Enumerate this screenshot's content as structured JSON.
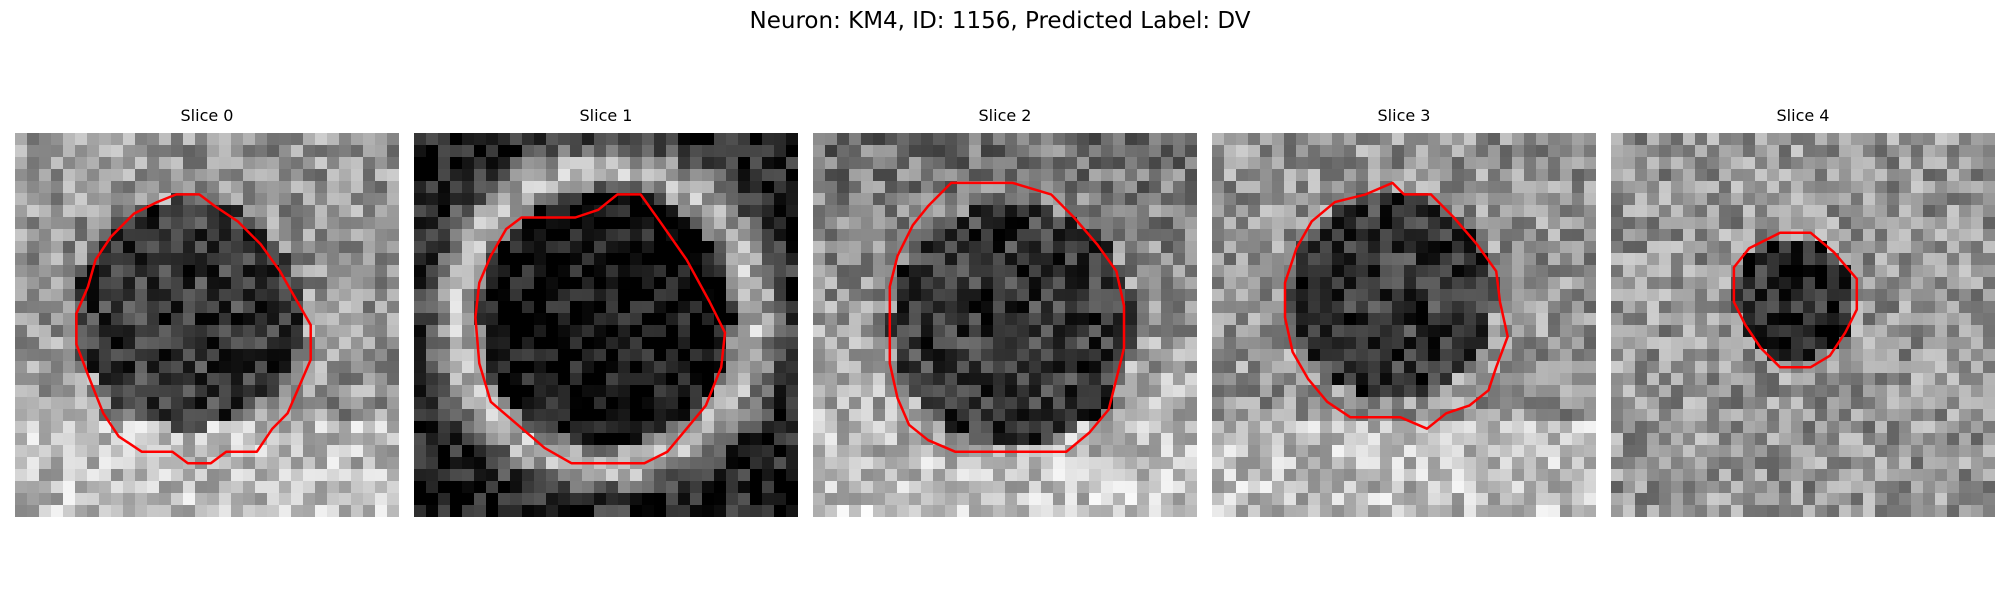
{
  "figure": {
    "title": "Neuron: KM4, ID: 1156, Predicted Label: DV",
    "contour_color": "#ff0000",
    "colormap": "gray"
  },
  "panels": [
    {
      "title": "Slice 0",
      "background": "mottled gray noise with dark circular region",
      "dark_center": [
        0.45,
        0.47
      ],
      "dark_radius": 0.3,
      "contour": [
        [
          0.42,
          0.16
        ],
        [
          0.48,
          0.16
        ],
        [
          0.52,
          0.19
        ],
        [
          0.58,
          0.23
        ],
        [
          0.64,
          0.29
        ],
        [
          0.69,
          0.36
        ],
        [
          0.73,
          0.43
        ],
        [
          0.77,
          0.5
        ],
        [
          0.77,
          0.59
        ],
        [
          0.74,
          0.66
        ],
        [
          0.71,
          0.73
        ],
        [
          0.67,
          0.77
        ],
        [
          0.63,
          0.83
        ],
        [
          0.55,
          0.83
        ],
        [
          0.51,
          0.86
        ],
        [
          0.45,
          0.86
        ],
        [
          0.41,
          0.83
        ],
        [
          0.33,
          0.83
        ],
        [
          0.27,
          0.79
        ],
        [
          0.23,
          0.73
        ],
        [
          0.19,
          0.63
        ],
        [
          0.16,
          0.55
        ],
        [
          0.16,
          0.47
        ],
        [
          0.19,
          0.4
        ],
        [
          0.21,
          0.33
        ],
        [
          0.25,
          0.27
        ],
        [
          0.31,
          0.21
        ],
        [
          0.37,
          0.18
        ]
      ]
    },
    {
      "title": "Slice 1",
      "background": "dark background with bright ring edges",
      "dark_center": [
        0.5,
        0.48
      ],
      "dark_radius": 0.33,
      "contour": [
        [
          0.53,
          0.16
        ],
        [
          0.59,
          0.16
        ],
        [
          0.64,
          0.23
        ],
        [
          0.71,
          0.33
        ],
        [
          0.77,
          0.44
        ],
        [
          0.81,
          0.52
        ],
        [
          0.8,
          0.61
        ],
        [
          0.76,
          0.71
        ],
        [
          0.71,
          0.77
        ],
        [
          0.66,
          0.83
        ],
        [
          0.6,
          0.86
        ],
        [
          0.5,
          0.86
        ],
        [
          0.41,
          0.86
        ],
        [
          0.34,
          0.82
        ],
        [
          0.27,
          0.76
        ],
        [
          0.2,
          0.7
        ],
        [
          0.17,
          0.6
        ],
        [
          0.16,
          0.48
        ],
        [
          0.17,
          0.39
        ],
        [
          0.2,
          0.32
        ],
        [
          0.24,
          0.25
        ],
        [
          0.28,
          0.22
        ],
        [
          0.42,
          0.22
        ],
        [
          0.48,
          0.2
        ]
      ]
    },
    {
      "title": "Slice 2",
      "background": "bright lower band and darker upper area",
      "dark_center": [
        0.52,
        0.5
      ],
      "dark_radius": 0.32,
      "contour": [
        [
          0.36,
          0.13
        ],
        [
          0.52,
          0.13
        ],
        [
          0.62,
          0.16
        ],
        [
          0.68,
          0.22
        ],
        [
          0.74,
          0.29
        ],
        [
          0.79,
          0.36
        ],
        [
          0.81,
          0.45
        ],
        [
          0.81,
          0.56
        ],
        [
          0.79,
          0.64
        ],
        [
          0.77,
          0.72
        ],
        [
          0.72,
          0.78
        ],
        [
          0.66,
          0.83
        ],
        [
          0.6,
          0.83
        ],
        [
          0.52,
          0.83
        ],
        [
          0.46,
          0.83
        ],
        [
          0.37,
          0.83
        ],
        [
          0.3,
          0.8
        ],
        [
          0.25,
          0.76
        ],
        [
          0.22,
          0.69
        ],
        [
          0.2,
          0.6
        ],
        [
          0.2,
          0.5
        ],
        [
          0.2,
          0.4
        ],
        [
          0.22,
          0.32
        ],
        [
          0.26,
          0.24
        ],
        [
          0.3,
          0.19
        ]
      ]
    },
    {
      "title": "Slice 3",
      "background": "bright noisy background with dark round region",
      "dark_center": [
        0.47,
        0.42
      ],
      "dark_radius": 0.27,
      "contour": [
        [
          0.4,
          0.16
        ],
        [
          0.47,
          0.13
        ],
        [
          0.5,
          0.16
        ],
        [
          0.57,
          0.16
        ],
        [
          0.63,
          0.22
        ],
        [
          0.69,
          0.29
        ],
        [
          0.74,
          0.36
        ],
        [
          0.75,
          0.44
        ],
        [
          0.77,
          0.53
        ],
        [
          0.74,
          0.61
        ],
        [
          0.72,
          0.67
        ],
        [
          0.67,
          0.71
        ],
        [
          0.61,
          0.73
        ],
        [
          0.56,
          0.77
        ],
        [
          0.49,
          0.74
        ],
        [
          0.36,
          0.74
        ],
        [
          0.3,
          0.7
        ],
        [
          0.25,
          0.64
        ],
        [
          0.21,
          0.57
        ],
        [
          0.19,
          0.48
        ],
        [
          0.19,
          0.39
        ],
        [
          0.22,
          0.3
        ],
        [
          0.26,
          0.23
        ],
        [
          0.32,
          0.18
        ]
      ]
    },
    {
      "title": "Slice 4",
      "background": "noisy mid-gray background with small dark spot",
      "dark_center": [
        0.48,
        0.43
      ],
      "dark_radius": 0.16,
      "contour": [
        [
          0.44,
          0.26
        ],
        [
          0.52,
          0.26
        ],
        [
          0.58,
          0.31
        ],
        [
          0.64,
          0.38
        ],
        [
          0.64,
          0.46
        ],
        [
          0.61,
          0.52
        ],
        [
          0.57,
          0.58
        ],
        [
          0.52,
          0.61
        ],
        [
          0.44,
          0.61
        ],
        [
          0.39,
          0.56
        ],
        [
          0.35,
          0.5
        ],
        [
          0.32,
          0.44
        ],
        [
          0.32,
          0.35
        ],
        [
          0.36,
          0.3
        ]
      ]
    }
  ]
}
